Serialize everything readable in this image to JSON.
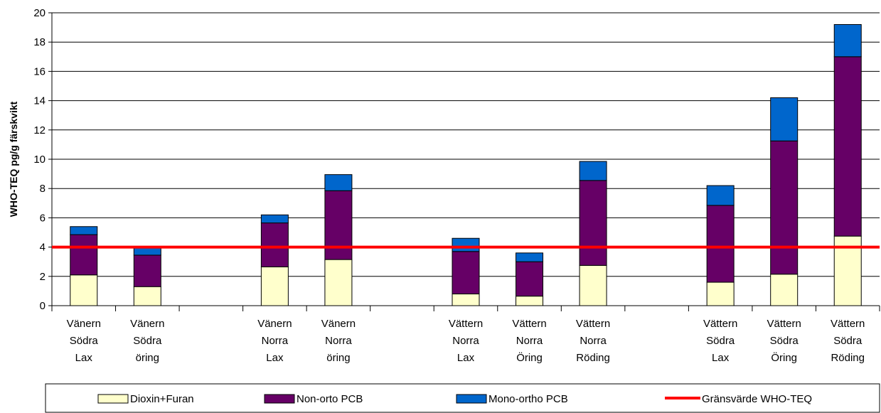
{
  "chart_data": {
    "type": "stacked_bar",
    "ylabel": "WHO-TEQ pg/g färskvikt",
    "categories": [
      "Vänern\nSödra\nLax",
      "Vänern\nSödra\nöring",
      null,
      "Vänern\nNorra\nLax",
      "Vänern\nNorra\nöring",
      null,
      "Vättern\nNorra\nLax",
      "Vättern\nNorra\nÖring",
      "Vättern\nNorra\nRöding",
      null,
      "Vättern\nSödra\nLax",
      "Vättern\nSödra\nÖring",
      "Vättern\nSödra\nRöding"
    ],
    "series": [
      {
        "name": "Dioxin+Furan",
        "color": "#ffffcc",
        "values": [
          2.1,
          1.3,
          null,
          2.65,
          3.15,
          null,
          0.8,
          0.65,
          2.75,
          null,
          1.6,
          2.15,
          4.75
        ]
      },
      {
        "name": "Non-orto PCB",
        "color": "#660066",
        "values": [
          2.75,
          2.15,
          null,
          3.0,
          4.7,
          null,
          2.9,
          2.35,
          5.8,
          null,
          5.25,
          9.1,
          12.25
        ]
      },
      {
        "name": "Mono-ortho PCB",
        "color": "#0066cc",
        "values": [
          0.55,
          0.5,
          null,
          0.55,
          1.1,
          null,
          0.9,
          0.6,
          1.3,
          null,
          1.35,
          2.95,
          2.2
        ]
      }
    ],
    "threshold": {
      "name": "Gränsvärde WHO-TEQ",
      "value": 4,
      "color": "#ff0000"
    },
    "ylim": [
      0,
      20
    ],
    "yticks": [
      0,
      2,
      4,
      6,
      8,
      10,
      12,
      14,
      16,
      18,
      20
    ],
    "grid": true
  }
}
